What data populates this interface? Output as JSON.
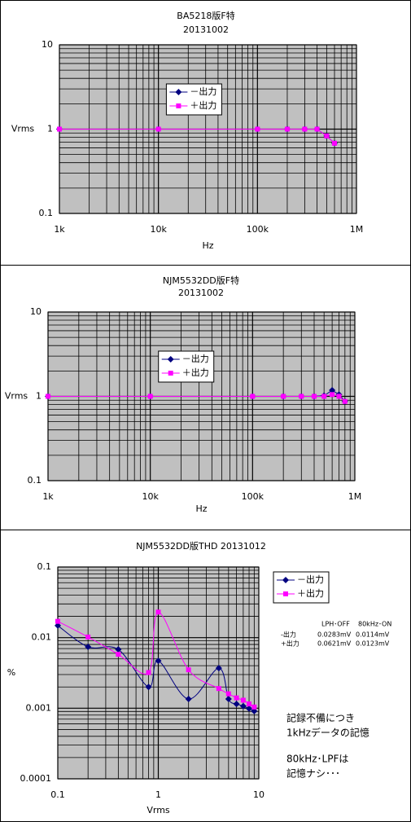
{
  "chart_data": [
    {
      "type": "line",
      "title": "BA5218版F特",
      "subtitle": "20131002",
      "x_label": "Hz",
      "y_label": "Vrms",
      "log_x": true,
      "log_y": true,
      "grid": true,
      "minor_grid": true,
      "legend": "upper-center",
      "smooth": false,
      "xlim": [
        1000,
        1000000
      ],
      "ylim": [
        0.1,
        10
      ],
      "xticks": [
        {
          "value": 1000,
          "label": "1k"
        },
        {
          "value": 10000,
          "label": "10k"
        },
        {
          "value": 100000,
          "label": "100k"
        },
        {
          "value": 1000000,
          "label": "1M"
        }
      ],
      "yticks": [
        0.1,
        1,
        10
      ],
      "x": [
        1000,
        10000,
        100000,
        200000,
        300000,
        400000,
        500000,
        600000
      ],
      "series": [
        {
          "name": "－出力",
          "color": "#000080",
          "marker": "diamond",
          "values": [
            1,
            1,
            1,
            1,
            1,
            1,
            0.83,
            0.68
          ]
        },
        {
          "name": "＋出力",
          "color": "#ff00ff",
          "marker": "square",
          "values": [
            1,
            1,
            1,
            1,
            1,
            1,
            0.83,
            0.68
          ]
        }
      ]
    },
    {
      "type": "line",
      "title": "NJM5532DD版F特",
      "subtitle": "20131002",
      "x_label": "Hz",
      "y_label": "Vrms",
      "log_x": true,
      "log_y": true,
      "grid": true,
      "minor_grid": true,
      "legend": "upper-center",
      "smooth": false,
      "xlim": [
        1000,
        1000000
      ],
      "ylim": [
        0.1,
        10
      ],
      "xticks": [
        {
          "value": 1000,
          "label": "1k"
        },
        {
          "value": 10000,
          "label": "10k"
        },
        {
          "value": 100000,
          "label": "100k"
        },
        {
          "value": 1000000,
          "label": "1M"
        }
      ],
      "yticks": [
        0.1,
        1,
        10
      ],
      "x": [
        1000,
        10000,
        100000,
        200000,
        300000,
        400000,
        500000,
        600000,
        700000,
        800000
      ],
      "series": [
        {
          "name": "－出力",
          "color": "#000080",
          "marker": "diamond",
          "values": [
            1,
            1,
            1,
            1,
            1,
            1,
            1.02,
            1.18,
            1.05,
            0.87
          ]
        },
        {
          "name": "＋出力",
          "color": "#ff00ff",
          "marker": "square",
          "values": [
            1,
            1,
            1,
            1,
            1,
            1,
            1,
            1.05,
            1,
            0.87
          ]
        }
      ]
    },
    {
      "type": "line",
      "title": "NJM5532DD版THD  20131012",
      "x_label": "Vrms",
      "y_label": "%",
      "log_x": true,
      "log_y": true,
      "grid": true,
      "minor_grid": true,
      "legend": "upper-right",
      "smooth": true,
      "xlim": [
        0.1,
        10
      ],
      "ylim": [
        0.0001,
        0.1
      ],
      "xticks": [
        0.1,
        1,
        10
      ],
      "yticks": [
        0.0001,
        0.001,
        0.01,
        0.1
      ],
      "x": [
        0.1,
        0.2,
        0.4,
        0.8,
        1,
        2,
        4,
        5,
        6,
        7,
        8,
        9
      ],
      "series": [
        {
          "name": "－出力",
          "color": "#000080",
          "marker": "diamond",
          "values": [
            0.0148,
            0.0074,
            0.0068,
            0.002,
            0.0047,
            0.00135,
            0.0037,
            0.00135,
            0.00115,
            0.00107,
            0.00099,
            0.00091
          ]
        },
        {
          "name": "＋出力",
          "color": "#ff00ff",
          "marker": "square",
          "values": [
            0.017,
            0.0102,
            0.0058,
            0.0032,
            0.023,
            0.0035,
            0.0019,
            0.0016,
            0.0014,
            0.0013,
            0.00115,
            0.00104
          ]
        }
      ],
      "table": {
        "header": [
          "LPH･OFF",
          "80kHz･ON"
        ],
        "rows": [
          [
            "-出力",
            "0.0283mV",
            "0.0114mV"
          ],
          [
            "+出力",
            "0.0621mV",
            "0.0123mV"
          ]
        ]
      },
      "notes": [
        "記録不備につき",
        "1kHzデータの記憶",
        "80kHz･LPFは",
        "記憶ナシ･･･"
      ]
    }
  ]
}
